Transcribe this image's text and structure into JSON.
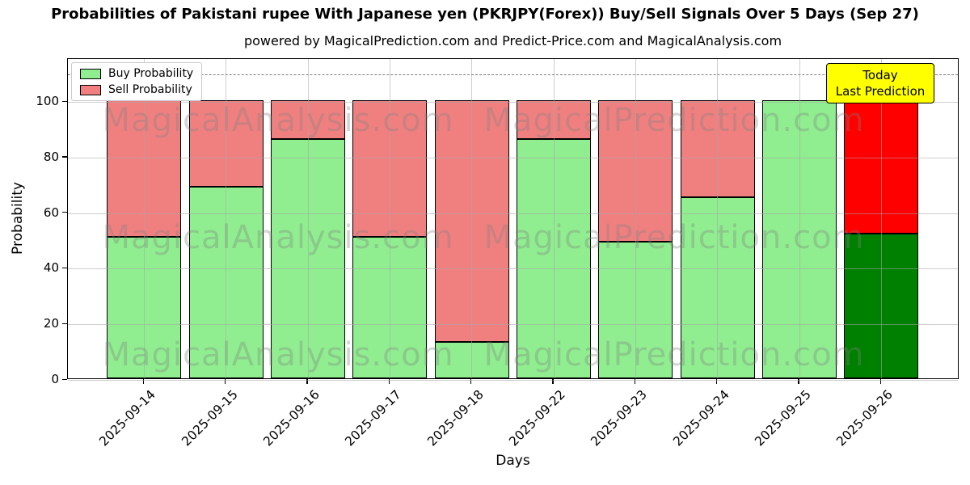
{
  "header": {
    "title": "Probabilities of Pakistani rupee With Japanese yen (PKRJPY(Forex)) Buy/Sell Signals Over 5 Days (Sep 27)",
    "subtitle": "powered by MagicalPrediction.com and Predict-Price.com and MagicalAnalysis.com"
  },
  "axes": {
    "x_label": "Days",
    "y_label": "Probability"
  },
  "legend": {
    "items": [
      {
        "label": "Buy Probability",
        "color": "#90ee90"
      },
      {
        "label": "Sell Probability",
        "color": "#f08080"
      }
    ]
  },
  "annotation_box": {
    "line1": "Today",
    "line2": "Last Prediction",
    "bg_color": "#ffff00"
  },
  "watermark": {
    "left_text": "MagicalAnalysis.com",
    "right_text": "MagicalPrediction.com"
  },
  "chart_data": {
    "type": "bar",
    "stacked": true,
    "title": "Probabilities of Pakistani rupee With Japanese yen (PKRJPY(Forex)) Buy/Sell Signals Over 5 Days (Sep 27)",
    "xlabel": "Days",
    "ylabel": "Probability",
    "ylim": [
      0,
      115
    ],
    "yticks": [
      0,
      20,
      40,
      60,
      80,
      100
    ],
    "grid": true,
    "legend_position": "upper left",
    "dashed_guide_y": 110,
    "bar_edge_color": "#000000",
    "categories": [
      "2025-09-14",
      "2025-09-15",
      "2025-09-16",
      "2025-09-17",
      "2025-09-18",
      "2025-09-22",
      "2025-09-23",
      "2025-09-24",
      "2025-09-25",
      "2025-09-26"
    ],
    "series": [
      {
        "name": "Buy Probability",
        "color": "#90ee90",
        "values": [
          51,
          69,
          86,
          51,
          13,
          86,
          49,
          65,
          100,
          52
        ]
      },
      {
        "name": "Sell Probability",
        "color": "#f08080",
        "values": [
          49,
          31,
          14,
          49,
          87,
          14,
          51,
          35,
          0,
          48
        ]
      }
    ],
    "highlight": {
      "index": 9,
      "category": "2025-09-26",
      "buy_color": "#008000",
      "sell_color": "#ff0000",
      "note": "Today / Last Prediction"
    }
  }
}
